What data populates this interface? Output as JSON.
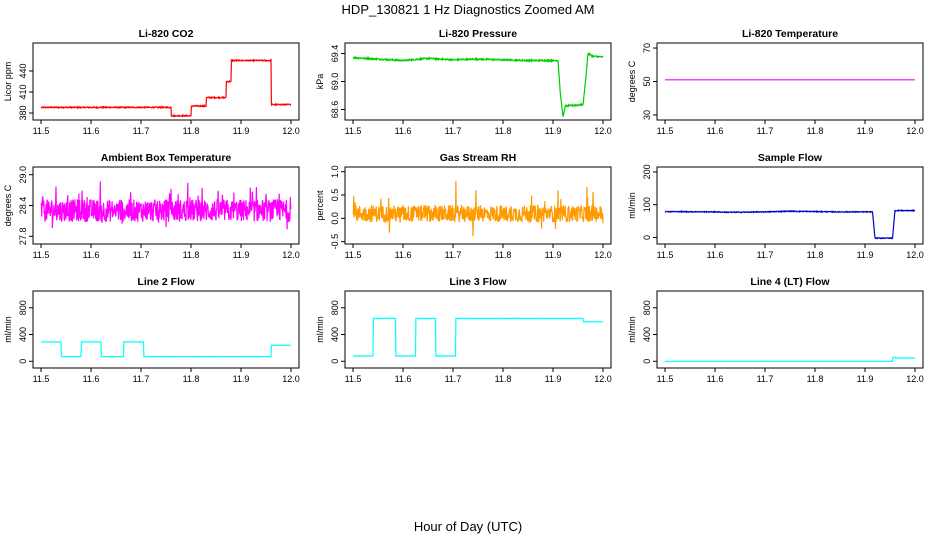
{
  "figure": {
    "title": "HDP_130821  1 Hz Diagnostics Zoomed AM",
    "xlabel": "Hour of Day (UTC)"
  },
  "chart_data": [
    {
      "type": "line",
      "title": "Li-820 CO2",
      "ylabel": "Licor ppm",
      "color": "#ff0000",
      "xlim": [
        11.5,
        12.0
      ],
      "ylim": [
        370,
        480
      ],
      "xticks": [
        11.5,
        11.6,
        11.7,
        11.8,
        11.9,
        12.0
      ],
      "yticks": [
        380,
        410,
        440
      ],
      "noise": 0.8,
      "series": [
        {
          "x": [
            11.5,
            11.76,
            11.76,
            11.8,
            11.8,
            11.83,
            11.83,
            11.87,
            11.87,
            11.88,
            11.88,
            11.96,
            11.96,
            12.0
          ],
          "y": [
            388,
            388,
            376,
            376,
            390,
            390,
            402,
            402,
            425,
            425,
            455,
            455,
            392,
            392
          ]
        }
      ]
    },
    {
      "type": "line",
      "title": "Li-820 Pressure",
      "ylabel": "kPa",
      "color": "#00cc00",
      "xlim": [
        11.5,
        12.0
      ],
      "ylim": [
        68.45,
        69.55
      ],
      "xticks": [
        11.5,
        11.6,
        11.7,
        11.8,
        11.9,
        12.0
      ],
      "yticks": [
        68.6,
        69.0,
        69.4
      ],
      "noise": 0.01,
      "series": [
        {
          "x": [
            11.5,
            11.55,
            11.6,
            11.65,
            11.7,
            11.75,
            11.8,
            11.85,
            11.91,
            11.915,
            11.92,
            11.925,
            11.96,
            11.965,
            11.97,
            11.98,
            12.0
          ],
          "y": [
            69.34,
            69.32,
            69.3,
            69.33,
            69.31,
            69.32,
            69.31,
            69.3,
            69.3,
            68.8,
            68.5,
            68.65,
            68.67,
            69.0,
            69.4,
            69.36,
            69.35
          ]
        }
      ]
    },
    {
      "type": "line",
      "title": "Li-820 Temperature",
      "ylabel": "degrees C",
      "color": "#ff00ff",
      "xlim": [
        11.5,
        12.0
      ],
      "ylim": [
        27,
        73
      ],
      "xticks": [
        11.5,
        11.6,
        11.7,
        11.8,
        11.9,
        12.0
      ],
      "yticks": [
        30,
        50,
        70
      ],
      "noise": 0,
      "series": [
        {
          "x": [
            11.5,
            12.0
          ],
          "y": [
            51,
            51
          ]
        }
      ]
    },
    {
      "type": "line",
      "title": "Ambient Box Temperature",
      "ylabel": "degrees C",
      "color": "#ff00ff",
      "xlim": [
        11.5,
        12.0
      ],
      "ylim": [
        27.65,
        29.15
      ],
      "xticks": [
        11.5,
        11.6,
        11.7,
        11.8,
        11.9,
        12.0
      ],
      "yticks": [
        27.8,
        28.4,
        29.0
      ],
      "noise": 0.22,
      "spikes": 0.35,
      "series": [
        {
          "x": [
            11.5,
            12.0
          ],
          "y": [
            28.3,
            28.3
          ]
        }
      ]
    },
    {
      "type": "line",
      "title": "Gas Stream RH",
      "ylabel": "percent",
      "color": "#ff9900",
      "xlim": [
        11.5,
        12.0
      ],
      "ylim": [
        -0.55,
        1.1
      ],
      "xticks": [
        11.5,
        11.6,
        11.7,
        11.8,
        11.9,
        12.0
      ],
      "yticks": [
        -0.5,
        0.0,
        0.5,
        1.0
      ],
      "noise": 0.18,
      "spikes": 0.45,
      "series": [
        {
          "x": [
            11.5,
            12.0
          ],
          "y": [
            0.1,
            0.1
          ]
        }
      ]
    },
    {
      "type": "line",
      "title": "Sample Flow",
      "ylabel": "ml/min",
      "color": "#0000cc",
      "xlim": [
        11.5,
        12.0
      ],
      "ylim": [
        -20,
        215
      ],
      "xticks": [
        11.5,
        11.6,
        11.7,
        11.8,
        11.9,
        12.0
      ],
      "yticks": [
        0,
        100,
        200
      ],
      "noise": 1.2,
      "series": [
        {
          "x": [
            11.5,
            11.6,
            11.62,
            11.65,
            11.7,
            11.75,
            11.8,
            11.85,
            11.9,
            11.915,
            11.92,
            11.955,
            11.96,
            12.0
          ],
          "y": [
            79,
            78,
            77,
            77,
            78,
            80,
            79,
            78,
            78,
            78,
            -2,
            -2,
            82,
            82
          ]
        }
      ]
    },
    {
      "type": "line",
      "title": "Line 2 Flow",
      "ylabel": "ml/min",
      "color": "#00ffff",
      "xlim": [
        11.5,
        12.0
      ],
      "ylim": [
        -100,
        1050
      ],
      "xticks": [
        11.5,
        11.6,
        11.7,
        11.8,
        11.9,
        12.0
      ],
      "yticks": [
        0,
        400,
        800
      ],
      "noise": 2,
      "series": [
        {
          "x": [
            11.5,
            11.54,
            11.54,
            11.58,
            11.58,
            11.62,
            11.62,
            11.665,
            11.665,
            11.705,
            11.705,
            11.96,
            11.96,
            12.0
          ],
          "y": [
            290,
            290,
            70,
            70,
            290,
            290,
            70,
            70,
            290,
            290,
            70,
            70,
            240,
            240
          ]
        }
      ]
    },
    {
      "type": "line",
      "title": "Line 3 Flow",
      "ylabel": "ml/min",
      "color": "#00ffff",
      "xlim": [
        11.5,
        12.0
      ],
      "ylim": [
        -100,
        1050
      ],
      "xticks": [
        11.5,
        11.6,
        11.7,
        11.8,
        11.9,
        12.0
      ],
      "yticks": [
        0,
        400,
        800
      ],
      "noise": 2,
      "series": [
        {
          "x": [
            11.5,
            11.54,
            11.54,
            11.585,
            11.585,
            11.625,
            11.625,
            11.665,
            11.665,
            11.705,
            11.705,
            11.96,
            11.96,
            12.0
          ],
          "y": [
            80,
            80,
            640,
            640,
            80,
            80,
            640,
            640,
            80,
            80,
            640,
            640,
            590,
            590
          ]
        }
      ]
    },
    {
      "type": "line",
      "title": "Line 4 (LT) Flow",
      "ylabel": "ml/min",
      "color": "#00ffff",
      "xlim": [
        11.5,
        12.0
      ],
      "ylim": [
        -100,
        1050
      ],
      "xticks": [
        11.5,
        11.6,
        11.7,
        11.8,
        11.9,
        12.0
      ],
      "yticks": [
        0,
        400,
        800
      ],
      "noise": 1,
      "series": [
        {
          "x": [
            11.5,
            11.955,
            11.955,
            11.96,
            11.96,
            12.0
          ],
          "y": [
            0,
            0,
            60,
            60,
            50,
            50
          ]
        }
      ]
    }
  ]
}
